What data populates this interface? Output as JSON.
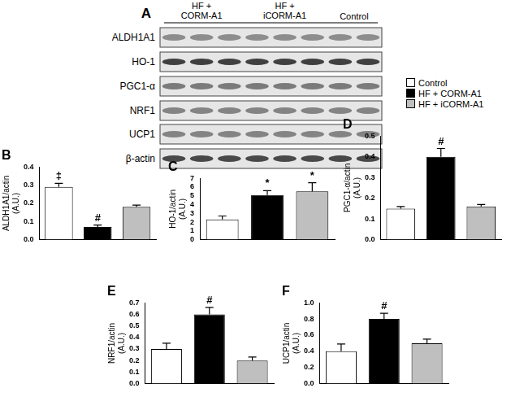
{
  "blot": {
    "panel": "A",
    "groups": [
      {
        "label": [
          "HF +",
          "CORM-A1"
        ],
        "lanes": 3
      },
      {
        "label": [
          "HF +",
          "iCORM-A1"
        ],
        "lanes": 3
      },
      {
        "label": [
          "Control"
        ],
        "lanes": 2
      }
    ],
    "rows": [
      "ALDH1A1",
      "HO-1",
      "PGC1-α",
      "NRF1",
      "UCP1",
      "β-actin"
    ]
  },
  "legend": [
    {
      "name": "Control",
      "color": "#ffffff"
    },
    {
      "name": "HF + CORM-A1",
      "color": "#000000"
    },
    {
      "name": "HF + iCORM-A1",
      "color": "#bfbfbf"
    }
  ],
  "chart_data": [
    {
      "type": "bar",
      "title": "B",
      "ylabel": [
        "ALDH1A1/actin",
        "(A.U.)"
      ],
      "categories": [
        null,
        null,
        null
      ],
      "values": [
        0.29,
        0.07,
        0.18
      ],
      "errors": [
        0.02,
        0.01,
        0.01
      ],
      "annotations": [
        "‡",
        "#",
        null
      ],
      "colors": [
        "#ffffff",
        "#000000",
        "#bfbfbf"
      ],
      "ylim": [
        0,
        0.4
      ],
      "yticks": [
        {
          "value": 0,
          "label": "0.0"
        },
        0.1,
        0.2,
        0.3,
        0.4
      ],
      "tick_labels": "y"
    },
    {
      "type": "bar",
      "title": "C",
      "ylabel": [
        "HO-1/actin",
        "(A.U.)"
      ],
      "categories": [
        null,
        null,
        null
      ],
      "values": [
        2.3,
        5.1,
        5.5
      ],
      "errors": [
        0.4,
        0.5,
        1.0
      ],
      "annotations": [
        null,
        "*",
        "*"
      ],
      "colors": [
        "#ffffff",
        "#000000",
        "#bfbfbf"
      ],
      "ylim": [
        0,
        7
      ],
      "yticks": [
        0,
        1,
        2,
        3,
        4,
        5,
        6,
        7
      ],
      "tick_labels": "y"
    },
    {
      "type": "bar",
      "title": "D",
      "ylabel": [
        "PGC1-α/actin",
        "(A.U.)"
      ],
      "categories": [
        null,
        null,
        null
      ],
      "values": [
        0.15,
        0.4,
        0.16
      ],
      "errors": [
        0.01,
        0.04,
        0.01
      ],
      "annotations": [
        null,
        "#",
        null
      ],
      "colors": [
        "#ffffff",
        "#000000",
        "#bfbfbf"
      ],
      "ylim": [
        0,
        0.5
      ],
      "yticks": [
        {
          "value": 0,
          "label": "0.0"
        },
        0.1,
        0.2,
        0.3,
        0.4,
        0.5
      ],
      "tick_labels": "y"
    },
    {
      "type": "bar",
      "title": "E",
      "ylabel": [
        "NRF1/actin",
        "(A.U.)"
      ],
      "categories": [
        null,
        null,
        null
      ],
      "values": [
        0.3,
        0.6,
        0.2
      ],
      "errors": [
        0.05,
        0.06,
        0.03
      ],
      "annotations": [
        null,
        "#",
        null
      ],
      "colors": [
        "#ffffff",
        "#000000",
        "#bfbfbf"
      ],
      "ylim": [
        0,
        0.7
      ],
      "yticks": [
        {
          "value": 0,
          "label": "0.0"
        },
        0.1,
        0.2,
        0.3,
        0.4,
        0.5,
        0.6,
        0.7
      ],
      "tick_labels": "y"
    },
    {
      "type": "bar",
      "title": "F",
      "ylabel": [
        "UCP1/actin",
        "(A.U.)"
      ],
      "categories": [
        null,
        null,
        null
      ],
      "values": [
        0.4,
        0.8,
        0.5
      ],
      "errors": [
        0.09,
        0.07,
        0.05
      ],
      "annotations": [
        null,
        "#",
        null
      ],
      "colors": [
        "#ffffff",
        "#000000",
        "#bfbfbf"
      ],
      "ylim": [
        0,
        1.0
      ],
      "yticks": [
        {
          "value": 0,
          "label": "0.0"
        },
        0.2,
        0.4,
        0.6,
        0.8,
        {
          "value": 1.0,
          "label": "1.0"
        }
      ],
      "tick_labels": "y"
    }
  ]
}
